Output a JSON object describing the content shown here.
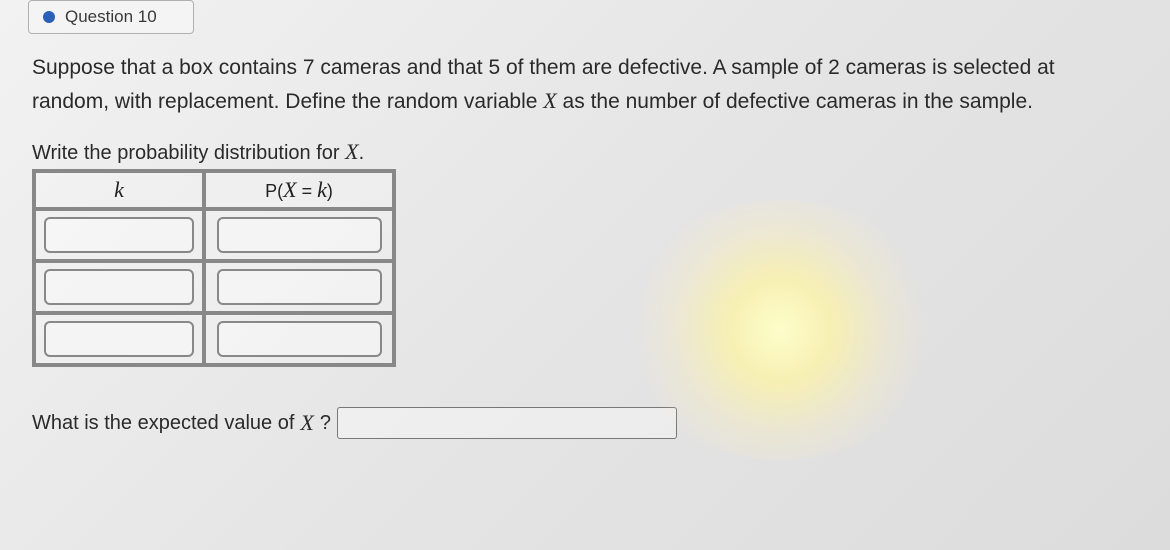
{
  "header": {
    "question_label": "Question 10"
  },
  "problem": {
    "text_before_X1": "Suppose that a box contains 7 cameras and that 5 of them are defective. A sample of 2 cameras is selected at random, with replacement. Define the random variable ",
    "var1": "X",
    "text_after_X1": " as the number of defective cameras in the sample."
  },
  "instruction": {
    "prefix": "Write the probability distribution for ",
    "var": "X",
    "suffix": "."
  },
  "table": {
    "headers": {
      "k": "k",
      "p_prefix": "P(",
      "p_var": "X",
      "p_mid": " = ",
      "p_after": "k",
      "p_suffix": ")"
    },
    "rows": [
      {
        "k": "",
        "p": ""
      },
      {
        "k": "",
        "p": ""
      },
      {
        "k": "",
        "p": ""
      }
    ]
  },
  "expected": {
    "prefix": "What is the expected value of ",
    "var": "X",
    "suffix": "?",
    "value": ""
  },
  "colors": {
    "accent_dot": "#2b5fb8",
    "border": "#888888",
    "text": "#2a2a2a",
    "background": "#e8e8e8"
  }
}
